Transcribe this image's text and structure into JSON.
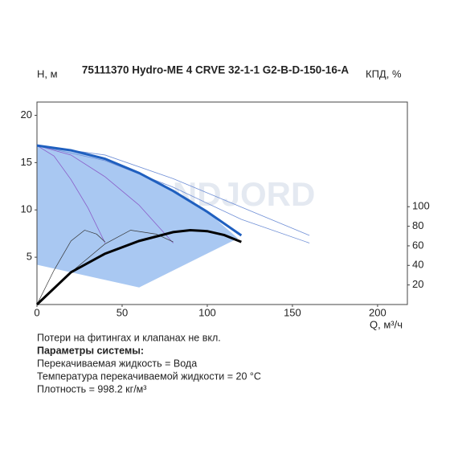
{
  "chart_data": {
    "type": "line",
    "title": "75111370 Hydro-ME 4 CRVE 32-1-1 G2-B-D-150-16-A",
    "ylabel": "H, м",
    "y2label": "КПД, %",
    "xlabel": "Q, м³/ч",
    "watermark": "VANDJORD",
    "xlim": [
      0,
      217.5
    ],
    "ylim": [
      0,
      21.4
    ],
    "y2lim": [
      0,
      207
    ],
    "xticks": [
      0,
      50,
      100,
      150,
      200
    ],
    "yticks": [
      5,
      10,
      15,
      20
    ],
    "y2ticks": [
      20,
      40,
      60,
      80,
      100
    ],
    "region": {
      "color": "#a9c8f2",
      "x": [
        0,
        20,
        40,
        60,
        80,
        100,
        118,
        60,
        0
      ],
      "values": [
        16.8,
        16.3,
        15.4,
        13.9,
        12,
        9.8,
        7,
        1.8,
        4.2
      ]
    },
    "series": [
      {
        "color": "#6f8fd6",
        "width": 0.8,
        "x": [
          0,
          40,
          80,
          120,
          160
        ],
        "values": [
          16.8,
          15.8,
          13.3,
          10.3,
          7.3
        ]
      },
      {
        "color": "#6f8fd6",
        "width": 0.8,
        "x": [
          0,
          40,
          80,
          120,
          160
        ],
        "values": [
          16.8,
          15.2,
          12.4,
          9.0,
          6.5
        ]
      },
      {
        "color": "#8a5cc8",
        "width": 0.8,
        "x": [
          0,
          10,
          20,
          30,
          40
        ],
        "values": [
          16.8,
          15.7,
          13.2,
          10.2,
          6.5
        ]
      },
      {
        "color": "#8a5cc8",
        "width": 0.8,
        "x": [
          0,
          20,
          40,
          60,
          80
        ],
        "values": [
          16.8,
          15.8,
          13.5,
          10.5,
          6.5
        ]
      },
      {
        "color": "#333333",
        "width": 0.7,
        "axis": "y2",
        "x": [
          0,
          10,
          20,
          28,
          35,
          40
        ],
        "values": [
          0,
          35,
          65,
          76,
          72,
          64
        ]
      },
      {
        "color": "#333333",
        "width": 0.7,
        "axis": "y2",
        "x": [
          0,
          20,
          40,
          55,
          70,
          80
        ],
        "values": [
          0,
          33,
          62,
          76,
          72,
          64
        ]
      },
      {
        "color": "#1f5fbf",
        "width": 3,
        "x": [
          0,
          20,
          40,
          60,
          80,
          100,
          120
        ],
        "values": [
          16.8,
          16.3,
          15.4,
          13.9,
          12,
          9.8,
          7.3
        ]
      },
      {
        "color": "#000000",
        "width": 3,
        "axis": "y2",
        "x": [
          0,
          20,
          40,
          60,
          80,
          90,
          100,
          110,
          120
        ],
        "values": [
          0,
          33,
          52,
          65,
          74,
          76,
          75,
          71,
          64
        ]
      }
    ],
    "notes": [
      "Потери на фитингах и клапанах не вкл.",
      "Параметры системы:",
      "Перекачиваемая жидкость = Вода",
      "Температура перекачиваемой жидкости = 20 °C",
      "Плотность = 998.2 кг/м³"
    ]
  }
}
